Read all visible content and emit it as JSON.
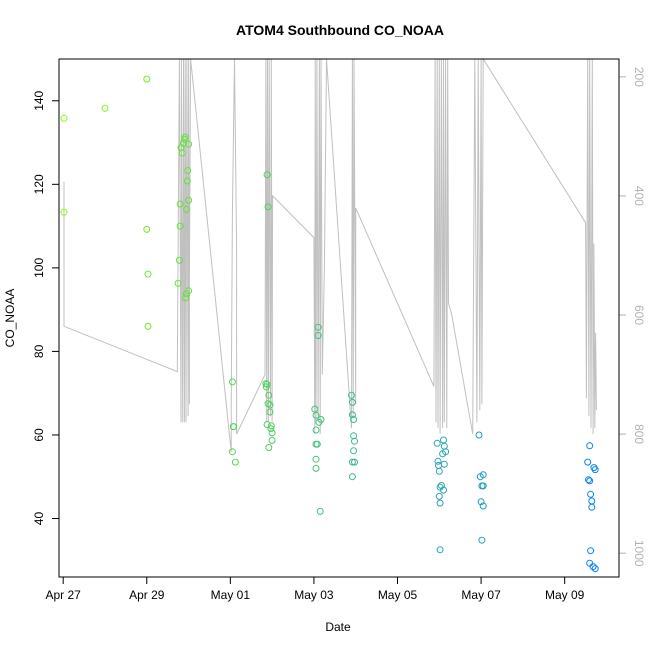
{
  "chart_data": {
    "type": "scatter",
    "title": "ATOM4 Southbound CO_NOAA",
    "xlabel": "Date",
    "ylabel": "CO_NOAA",
    "x_unit": "days since Apr 27",
    "xlim": [
      -0.1,
      13.3
    ],
    "ylim": [
      26,
      150
    ],
    "x_ticks": [
      0,
      2,
      4,
      6,
      8,
      10,
      12
    ],
    "x_tick_labels": [
      "Apr 27",
      "Apr 29",
      "May 01",
      "May 03",
      "May 05",
      "May 07",
      "May 09"
    ],
    "y_ticks": [
      40,
      60,
      80,
      100,
      120,
      140
    ],
    "y_tick_labels": [
      "40",
      "60",
      "80",
      "100",
      "120",
      "140"
    ],
    "y2_label": "",
    "y2_lim": [
      1040,
      170
    ],
    "y2_ticks": [
      200,
      400,
      600,
      800,
      1000
    ],
    "y2_tick_labels": [
      "200",
      "400",
      "600",
      "800",
      "1000"
    ],
    "line_color": "#c0c0c0",
    "marker": "open-circle",
    "color_scale": {
      "start": "#80ff00",
      "end": "#0080ff",
      "by": "date"
    },
    "points": [
      [
        0.02,
        135.8
      ],
      [
        0.02,
        113.3
      ],
      [
        1.0,
        138.2
      ],
      [
        2.0,
        145.2
      ],
      [
        2.0,
        109.2
      ],
      [
        2.03,
        98.5
      ],
      [
        2.03,
        86.0
      ],
      [
        2.75,
        96.3
      ],
      [
        2.78,
        101.8
      ],
      [
        2.8,
        110.0
      ],
      [
        2.8,
        115.3
      ],
      [
        2.82,
        128.8
      ],
      [
        2.85,
        127.5
      ],
      [
        2.88,
        129.8
      ],
      [
        2.9,
        130.8
      ],
      [
        2.92,
        131.3
      ],
      [
        2.93,
        92.8
      ],
      [
        2.95,
        93.8
      ],
      [
        2.95,
        114.0
      ],
      [
        2.97,
        120.8
      ],
      [
        2.98,
        123.3
      ],
      [
        3.0,
        116.2
      ],
      [
        3.0,
        129.6
      ],
      [
        3.0,
        94.5
      ],
      [
        4.05,
        72.7
      ],
      [
        4.07,
        62.0
      ],
      [
        4.08,
        62.0
      ],
      [
        4.05,
        56.0
      ],
      [
        4.12,
        53.5
      ],
      [
        4.85,
        72.3
      ],
      [
        4.86,
        71.5
      ],
      [
        4.88,
        72.1
      ],
      [
        4.88,
        62.5
      ],
      [
        4.9,
        67.5
      ],
      [
        4.92,
        69.5
      ],
      [
        4.92,
        57.0
      ],
      [
        4.95,
        67.2
      ],
      [
        4.95,
        65.5
      ],
      [
        4.97,
        61.5
      ],
      [
        4.98,
        62.2
      ],
      [
        5.0,
        60.5
      ],
      [
        5.0,
        58.7
      ],
      [
        4.88,
        122.3
      ],
      [
        4.9,
        114.6
      ],
      [
        6.02,
        66.2
      ],
      [
        6.05,
        64.7
      ],
      [
        6.05,
        61.2
      ],
      [
        6.05,
        57.8
      ],
      [
        6.08,
        57.8
      ],
      [
        6.05,
        54.2
      ],
      [
        6.05,
        52.0
      ],
      [
        6.1,
        85.8
      ],
      [
        6.1,
        83.8
      ],
      [
        6.12,
        63.0
      ],
      [
        6.17,
        63.7
      ],
      [
        6.15,
        41.7
      ],
      [
        6.9,
        69.5
      ],
      [
        6.92,
        67.8
      ],
      [
        6.92,
        64.8
      ],
      [
        6.95,
        63.7
      ],
      [
        6.95,
        59.8
      ],
      [
        6.97,
        58.5
      ],
      [
        6.95,
        56.2
      ],
      [
        6.97,
        53.5
      ],
      [
        6.92,
        53.5
      ],
      [
        6.92,
        50.0
      ],
      [
        8.95,
        58.0
      ],
      [
        8.97,
        53.7
      ],
      [
        8.98,
        52.7
      ],
      [
        9.0,
        51.3
      ],
      [
        9.02,
        47.5
      ],
      [
        9.0,
        45.3
      ],
      [
        9.02,
        43.7
      ],
      [
        9.05,
        47.9
      ],
      [
        9.08,
        55.5
      ],
      [
        9.1,
        58.8
      ],
      [
        9.12,
        57.3
      ],
      [
        9.15,
        56.0
      ],
      [
        9.12,
        53.0
      ],
      [
        9.1,
        46.8
      ],
      [
        9.02,
        32.5
      ],
      [
        9.95,
        60.0
      ],
      [
        9.98,
        50.0
      ],
      [
        10.05,
        50.5
      ],
      [
        10.02,
        47.8
      ],
      [
        10.05,
        47.8
      ],
      [
        10.0,
        44.0
      ],
      [
        10.05,
        43.0
      ],
      [
        10.02,
        34.8
      ],
      [
        12.55,
        53.5
      ],
      [
        12.57,
        49.3
      ],
      [
        12.6,
        57.4
      ],
      [
        12.62,
        45.8
      ],
      [
        12.65,
        44.2
      ],
      [
        12.65,
        42.7
      ],
      [
        12.6,
        49.0
      ],
      [
        12.7,
        52.2
      ],
      [
        12.73,
        51.7
      ],
      [
        12.62,
        32.3
      ],
      [
        12.6,
        29.3
      ],
      [
        12.68,
        28.5
      ],
      [
        12.73,
        28.0
      ]
    ],
    "line_y2": [
      [
        0.02,
        376
      ],
      [
        0.02,
        619
      ],
      [
        2.73,
        695
      ],
      [
        2.78,
        158
      ],
      [
        2.82,
        780
      ],
      [
        2.83,
        158
      ],
      [
        2.86,
        780
      ],
      [
        2.88,
        158
      ],
      [
        2.9,
        780
      ],
      [
        2.92,
        158
      ],
      [
        2.94,
        780
      ],
      [
        2.96,
        158
      ],
      [
        2.99,
        770
      ],
      [
        3.0,
        158
      ],
      [
        3.02,
        750
      ],
      [
        3.02,
        540
      ],
      [
        3.05,
        158
      ],
      [
        4.02,
        830
      ],
      [
        4.02,
        760
      ],
      [
        4.05,
        430
      ],
      [
        4.1,
        158
      ],
      [
        4.15,
        490
      ],
      [
        4.15,
        800
      ],
      [
        4.83,
        700
      ],
      [
        4.85,
        158
      ],
      [
        4.87,
        780
      ],
      [
        4.89,
        158
      ],
      [
        4.91,
        780
      ],
      [
        4.93,
        158
      ],
      [
        4.96,
        770
      ],
      [
        4.98,
        158
      ],
      [
        5.0,
        780
      ],
      [
        5.01,
        400
      ],
      [
        6.0,
        470
      ],
      [
        6.02,
        800
      ],
      [
        6.03,
        158
      ],
      [
        6.05,
        780
      ],
      [
        6.07,
        158
      ],
      [
        6.1,
        770
      ],
      [
        6.13,
        158
      ],
      [
        6.15,
        800
      ],
      [
        6.17,
        158
      ],
      [
        6.2,
        700
      ],
      [
        6.25,
        520
      ],
      [
        6.3,
        158
      ],
      [
        6.9,
        790
      ],
      [
        6.92,
        158
      ],
      [
        6.94,
        770
      ],
      [
        6.96,
        158
      ],
      [
        7.0,
        750
      ],
      [
        7.0,
        420
      ],
      [
        8.87,
        720
      ],
      [
        8.9,
        158
      ],
      [
        8.92,
        780
      ],
      [
        8.95,
        158
      ],
      [
        8.97,
        790
      ],
      [
        9.0,
        158
      ],
      [
        9.02,
        800
      ],
      [
        9.05,
        158
      ],
      [
        9.08,
        790
      ],
      [
        9.1,
        158
      ],
      [
        9.12,
        780
      ],
      [
        9.15,
        158
      ],
      [
        9.18,
        790
      ],
      [
        9.2,
        158
      ],
      [
        9.22,
        580
      ],
      [
        9.3,
        600
      ],
      [
        9.8,
        800
      ],
      [
        9.85,
        158
      ],
      [
        9.9,
        780
      ],
      [
        9.93,
        158
      ],
      [
        9.97,
        760
      ],
      [
        10.0,
        158
      ],
      [
        10.02,
        750
      ],
      [
        10.05,
        158
      ],
      [
        12.5,
        445
      ],
      [
        12.52,
        740
      ],
      [
        12.55,
        158
      ],
      [
        12.58,
        770
      ],
      [
        12.6,
        158
      ],
      [
        12.63,
        790
      ],
      [
        12.66,
        158
      ],
      [
        12.68,
        800
      ],
      [
        12.7,
        480
      ],
      [
        12.72,
        790
      ],
      [
        12.74,
        630
      ],
      [
        12.76,
        760
      ]
    ]
  }
}
